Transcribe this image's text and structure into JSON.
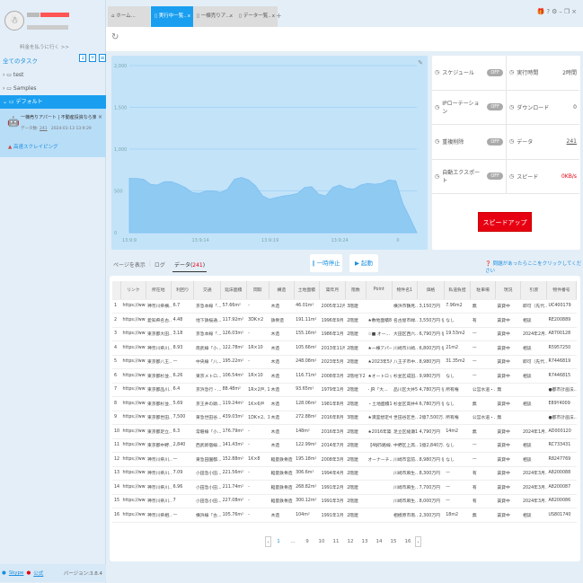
{
  "sidebar": {
    "pay_link": "料金を払うに行く >>",
    "all_tasks": "全てのタスク",
    "tree": [
      {
        "label": "test",
        "expanded": false
      },
      {
        "label": "Samples",
        "expanded": false
      },
      {
        "label": "デフォルト",
        "expanded": true
      }
    ],
    "task": {
      "title": "一棟売りアパート | 不動産投資なら楽待(不...",
      "data_label": "データ数:",
      "data_count": "241",
      "time": "2024-01-13 13:9:29",
      "mode": "高速スクレイピング"
    },
    "footer": {
      "skype": "Skype",
      "official": "公式",
      "version": "バージョン:3.8.4"
    }
  },
  "tabs": [
    {
      "label": "ホーム...",
      "icon": "home-icon",
      "active": false
    },
    {
      "label": "実行中一覧..",
      "icon": "doc-icon",
      "active": true
    },
    {
      "label": "一棟売りア...",
      "icon": "doc-icon",
      "active": false
    },
    {
      "label": "データ一覧..",
      "icon": "doc-icon",
      "active": false
    }
  ],
  "tab_add": "+",
  "chart_data": {
    "type": "area",
    "ylim": [
      0,
      2000
    ],
    "yticks": [
      "2,000",
      "1,500",
      "1,000",
      "500",
      "0"
    ],
    "xticks": [
      "13:9:9",
      "13:9:14",
      "13:9:19",
      "13:9:24",
      "0"
    ],
    "values": [
      650,
      650,
      640,
      580,
      570,
      610,
      610,
      580,
      540,
      480,
      470,
      500,
      500,
      480,
      520,
      640,
      660,
      630,
      560,
      440,
      400,
      420,
      440,
      450,
      470,
      540,
      550,
      460,
      440,
      540,
      570,
      530,
      520,
      570,
      590,
      580,
      590,
      630,
      620,
      350,
      180,
      0
    ],
    "color": "#8fcaf3"
  },
  "stats": [
    {
      "label": "スケジュール",
      "value": "OFF",
      "toggle": true,
      "icon": "schedule-icon"
    },
    {
      "label": "実行時間",
      "value": "2時間",
      "icon": "clock-icon"
    },
    {
      "label": "IPローテーション",
      "value": "OFF",
      "toggle": true,
      "icon": "ip-icon"
    },
    {
      "label": "ダウンロード",
      "value": "0",
      "icon": "download-icon"
    },
    {
      "label": "重複削除",
      "value": "OFF",
      "toggle": true,
      "icon": "dedupe-icon"
    },
    {
      "label": "データ",
      "value": "241",
      "icon": "data-icon"
    },
    {
      "label": "自動エクスポート",
      "value": "OFF",
      "toggle": true,
      "icon": "export-icon"
    },
    {
      "label": "スピード",
      "value": "0KB/s",
      "icon": "speed-icon",
      "color": "#e60012"
    }
  ],
  "speedup": "スピードアップ",
  "lower": {
    "show_page": "ページを表示",
    "log": "ログ",
    "data": "データ(",
    "data_count": "241",
    "data_close": ")",
    "pause": "一時停止",
    "start": "起動",
    "help": "問題があったらここをクリックしてください"
  },
  "table": {
    "columns": [
      "",
      "リンク",
      "所在地",
      "利回り",
      "交通",
      "延床面積",
      "間取",
      "構造",
      "土地面積",
      "築年月",
      "階数",
      "Point",
      "物件名1",
      "価格",
      "私道負担",
      "駐車場",
      "現況",
      "引渡",
      "物件番号"
    ],
    "rows": [
      [
        "1",
        "https://www...",
        "神奈川県横...",
        "6.7",
        "京急本線「...",
        "57.66m²",
        "-",
        "木造",
        "46.01m²",
        "2005年12月",
        "3階建",
        "",
        "横浜市鶴見...",
        "3,150万円",
        "7.96m2",
        "無",
        "賃貸中",
        "即可（先代...",
        "UC400179"
      ],
      [
        "2",
        "https://www...",
        "愛知県名古...",
        "4.48",
        "地下鉄桜通...",
        "117.92m²",
        "3DK×2",
        "鉄骨造",
        "191.11m²",
        "1996年9月",
        "2階建",
        "★敷地面積81...",
        "名古屋市緑...",
        "3,550万円 値...",
        "なし",
        "有",
        "賃貸中",
        "相談",
        "RE200889"
      ],
      [
        "3",
        "https://www...",
        "東京都大田...",
        "3.18",
        "京急本線「...",
        "126.03m²",
        "-",
        "木造",
        "155.16m²",
        "1986年1月",
        "2階建",
        "☆■ オー...",
        "大田区西六...",
        "6,790万円 値...",
        "19.53m2",
        "—",
        "賃貸中",
        "2024年2月...",
        "A8700128"
      ],
      [
        "4",
        "https://www...",
        "神奈川県川...",
        "8.93",
        "南武線「小...",
        "122.78m²",
        "1R×10",
        "木造",
        "105.66m²",
        "2013年11月",
        "2階建",
        "★一棟アパー...",
        "川崎市川崎...",
        "6,800万円 値...",
        "21m2",
        "—",
        "賃貸中",
        "相談",
        "R5957250"
      ],
      [
        "5",
        "https://www...",
        "東京都八王...",
        "—",
        "中央線「八...",
        "195.22m²",
        "-",
        "木造",
        "248.08m²",
        "2023年5月",
        "2階建",
        "★2023年5月...",
        "八王子市中...",
        "8,980万円",
        "31.35m2",
        "—",
        "賃貸中",
        "即可（先代...",
        "R7446819"
      ],
      [
        "6",
        "https://www...",
        "東京都杉並...",
        "6.26",
        "東京メトロ...",
        "106.54m²",
        "1R×10",
        "木造",
        "116.71m²",
        "2008年3月",
        "2階地下2階建",
        "★オートロッ...",
        "杉並区成田...",
        "9,980万円",
        "なし",
        "—",
        "賃貸中",
        "相談",
        "R7446815"
      ],
      [
        "7",
        "https://www...",
        "東京都品川...",
        "6.4",
        "京浜急行 - ...",
        "88.48m²",
        "1R×2戸, 1...",
        "木造",
        "93.65m²",
        "1979年1月",
        "2階建",
        "- JR「大...",
        "品川区大井5...",
        "4,780万円 値...",
        "所有権",
        "公営水道・...",
        "無",
        "",
        "●都市計画法..."
      ],
      [
        "8",
        "https://www...",
        "東京都杉並...",
        "5.69",
        "京王井の頭...",
        "119.24m²",
        "1K×6戸",
        "木造",
        "128.06m²",
        "1981年8月",
        "2階建",
        "・土地面積1...",
        "杉並区高井4...",
        "6,780万円 値...",
        "なし",
        "無",
        "賃貸中",
        "相談",
        "E89Y4009"
      ],
      [
        "9",
        "https://www...",
        "東京都世田...",
        "7,500",
        "東急世田谷...",
        "439.03m²",
        "1DK×2、1L...",
        "木造",
        "272.88m²",
        "2016年8月",
        "3階建",
        "★満室想定中...",
        "世田谷区世...",
        "2億7,500万...",
        "所有権",
        "公営水道・...",
        "無",
        "",
        "●都市計画法..."
      ],
      [
        "10",
        "https://www...",
        "東京都足立...",
        "6.3",
        "常磐線「小...",
        "176.79m²",
        "-",
        "木造",
        "148m²",
        "2016年3月",
        "2階建",
        "★2016年築...",
        "足立区綾瀬1...",
        "4,790万円",
        "14m2",
        "無",
        "賃貸中",
        "2024年1月...",
        "AD000120"
      ],
      [
        "11",
        "https://www...",
        "東京都中野...",
        "2,840",
        "西武新宿線...",
        "141.43m²",
        "-",
        "木造",
        "122.99m²",
        "2014年7月",
        "2階建",
        "【4駅5路線...",
        "中野区上高...",
        "1億2,840万...",
        "なし",
        "—",
        "賃貸中",
        "相談",
        "RC733431"
      ],
      [
        "12",
        "https://www...",
        "神奈川県川...",
        "—",
        "東急田園都...",
        "152.88m²",
        "1K×8",
        "軽量鉄骨造",
        "195.18m²",
        "2008年3月",
        "2階建",
        "オーナーチ...",
        "川崎市宮前...",
        "8,980万円 値...",
        "なし",
        "—",
        "賃貸中",
        "相談",
        "R8247769"
      ],
      [
        "13",
        "https://www...",
        "神奈川県川...",
        "7.09",
        "小田急小田...",
        "221.56m²",
        "-",
        "軽量鉄骨造",
        "306.6m²",
        "1994年4月",
        "2階建",
        "",
        "川崎市麻生...",
        "8,300万円",
        "—",
        "有",
        "賃貸中",
        "2024年3月...",
        "A8200088"
      ],
      [
        "14",
        "https://www...",
        "神奈川県川...",
        "6.96",
        "小田急小田...",
        "211.74m²",
        "-",
        "軽量鉄骨造",
        "268.82m²",
        "1991年2月",
        "2階建",
        "",
        "川崎市麻生...",
        "7,700万円",
        "—",
        "有",
        "賃貸中",
        "2024年3月...",
        "A8200087"
      ],
      [
        "15",
        "https://www...",
        "神奈川県川...",
        "7",
        "小田急小田...",
        "227.08m²",
        "-",
        "軽量鉄骨造",
        "300.12m²",
        "1991年3月",
        "2階建",
        "",
        "川崎市麻生...",
        "8,000万円",
        "—",
        "有",
        "賃貸中",
        "2024年3月...",
        "A8200086"
      ],
      [
        "16",
        "https://www...",
        "神奈川県相...",
        "—",
        "横浜線「古...",
        "105.76m²",
        "-",
        "木造",
        "104m²",
        "1991年1月",
        "2階建",
        "",
        "相模原市南...",
        "2,300万円",
        "18m2",
        "無",
        "賃貸中",
        "相談",
        "US801740"
      ]
    ]
  },
  "pagination": {
    "pages": [
      "1",
      "...",
      "9",
      "10",
      "11",
      "12",
      "13",
      "14",
      "15",
      "16"
    ],
    "current": "1"
  },
  "colors": {
    "accent": "#1a9ff0",
    "danger": "#e60012"
  }
}
